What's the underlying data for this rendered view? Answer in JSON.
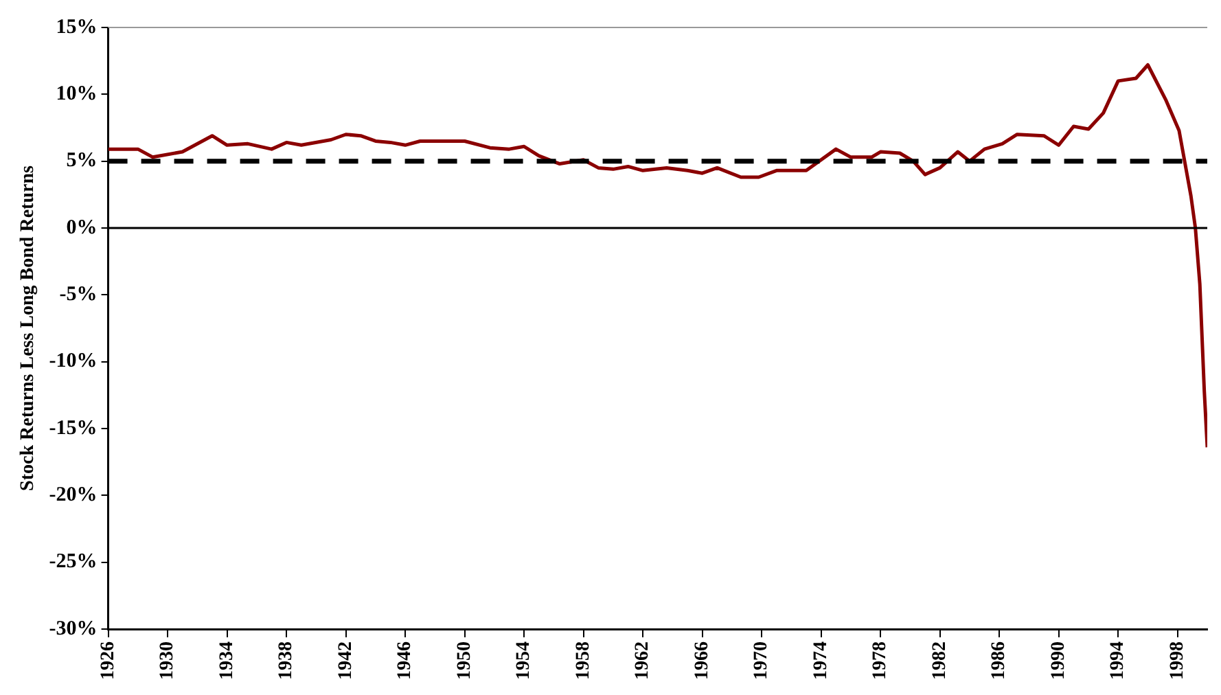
{
  "chart_data": {
    "type": "line",
    "ylabel": "Stock Returns Less Long Bond Returns",
    "xlim": [
      1926,
      2000
    ],
    "xticks": [
      1926,
      1930,
      1934,
      1938,
      1942,
      1946,
      1950,
      1954,
      1958,
      1962,
      1966,
      1970,
      1974,
      1978,
      1982,
      1986,
      1990,
      1994,
      1998
    ],
    "ylim": [
      -30,
      15
    ],
    "yticks": [
      {
        "value": -30,
        "label": "-30%"
      },
      {
        "value": -25,
        "label": "-25%"
      },
      {
        "value": -20,
        "label": "-20%"
      },
      {
        "value": -15,
        "label": "-15%"
      },
      {
        "value": -10,
        "label": "-10%"
      },
      {
        "value": -5,
        "label": "-5%"
      },
      {
        "value": 0,
        "label": "0%"
      },
      {
        "value": 5,
        "label": "5%"
      },
      {
        "value": 10,
        "label": "10%"
      },
      {
        "value": 15,
        "label": "15%"
      }
    ],
    "grid": false,
    "legend": false,
    "marker": "none",
    "line_style": "solid",
    "ref_lines": [
      {
        "axis": "y",
        "value": 5,
        "color": "#000000",
        "line_style": "dashed"
      },
      {
        "axis": "y",
        "value": 0,
        "color": "#000000",
        "line_style": "solid"
      }
    ],
    "series": [
      {
        "color": "#8b0000",
        "x": [
          1926,
          1928,
          1929,
          1931,
          1933,
          1934,
          1935.4,
          1937,
          1938,
          1939,
          1941,
          1942,
          1943,
          1944,
          1945,
          1946,
          1947,
          1950,
          1951.7,
          1953,
          1954,
          1955,
          1956.4,
          1958,
          1959,
          1960,
          1961,
          1962,
          1963.6,
          1965,
          1966,
          1967,
          1968.6,
          1969.8,
          1971,
          1973,
          1975,
          1976,
          1977.4,
          1978,
          1979.3,
          1980.2,
          1981,
          1982,
          1983.2,
          1984,
          1985,
          1986.2,
          1987.2,
          1989,
          1990,
          1991,
          1992,
          1993,
          1994,
          1995.2,
          1996,
          1997.2,
          1998.1,
          1998.9,
          1999.2,
          1999.5,
          1999.8,
          2000
        ],
        "values": [
          5.9,
          5.9,
          5.3,
          5.7,
          6.9,
          6.2,
          6.3,
          5.9,
          6.4,
          6.2,
          6.6,
          7.0,
          6.9,
          6.5,
          6.4,
          6.2,
          6.5,
          6.5,
          6.0,
          5.9,
          6.1,
          5.4,
          4.8,
          5.1,
          4.5,
          4.4,
          4.6,
          4.3,
          4.5,
          4.3,
          4.1,
          4.5,
          3.8,
          3.8,
          4.3,
          4.3,
          5.9,
          5.3,
          5.3,
          5.7,
          5.6,
          5.0,
          4.0,
          4.5,
          5.7,
          5.0,
          5.9,
          6.3,
          7.0,
          6.9,
          6.2,
          7.6,
          7.4,
          8.6,
          11.0,
          11.2,
          12.2,
          9.6,
          7.3,
          2.4,
          0,
          -4.2,
          -12.2,
          -16.4
        ]
      }
    ]
  }
}
